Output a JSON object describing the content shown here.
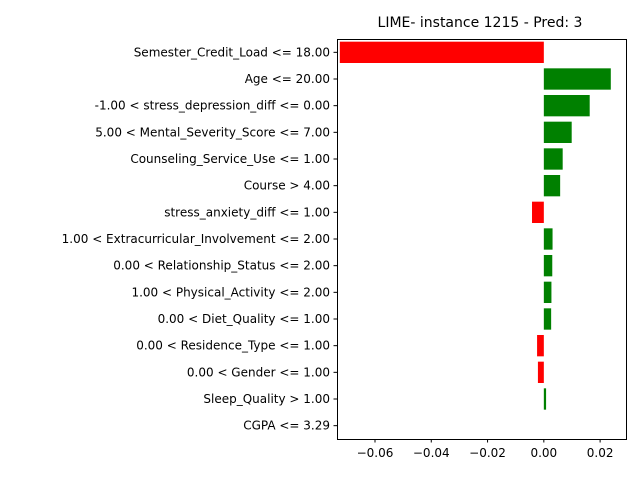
{
  "chart_data": {
    "type": "bar",
    "orientation": "horizontal",
    "title": "LIME- instance 1215 - Pred: 3",
    "xlabel": "",
    "ylabel": "",
    "xlim": [
      -0.0735,
      0.0292
    ],
    "x_ticks": [
      -0.06,
      -0.04,
      -0.02,
      0.0,
      0.02
    ],
    "x_tick_labels": [
      "−0.06",
      "−0.04",
      "−0.02",
      "0.00",
      "0.02"
    ],
    "grid": false,
    "legend": "none",
    "colors": {
      "positive": "#008000",
      "negative": "#ff0000"
    },
    "categories": [
      "Semester_Credit_Load <= 18.00",
      "Age <= 20.00",
      "-1.00 < stress_depression_diff <= 0.00",
      "5.00 < Mental_Severity_Score <= 7.00",
      "Counseling_Service_Use <= 1.00",
      "Course > 4.00",
      "stress_anxiety_diff <= 1.00",
      "1.00 < Extracurricular_Involvement <= 2.00",
      "0.00 < Relationship_Status <= 2.00",
      "1.00 < Physical_Activity <= 2.00",
      "0.00 < Diet_Quality <= 1.00",
      "0.00 < Residence_Type <= 1.00",
      "0.00 < Gender <= 1.00",
      "Sleep_Quality > 1.00",
      "CGPA <= 3.29"
    ],
    "values": [
      -0.0725,
      0.0238,
      0.0163,
      0.0099,
      0.0067,
      0.0058,
      -0.0042,
      0.0031,
      0.003,
      0.0027,
      0.0026,
      -0.0024,
      -0.0021,
      0.0008,
      0.0
    ]
  }
}
